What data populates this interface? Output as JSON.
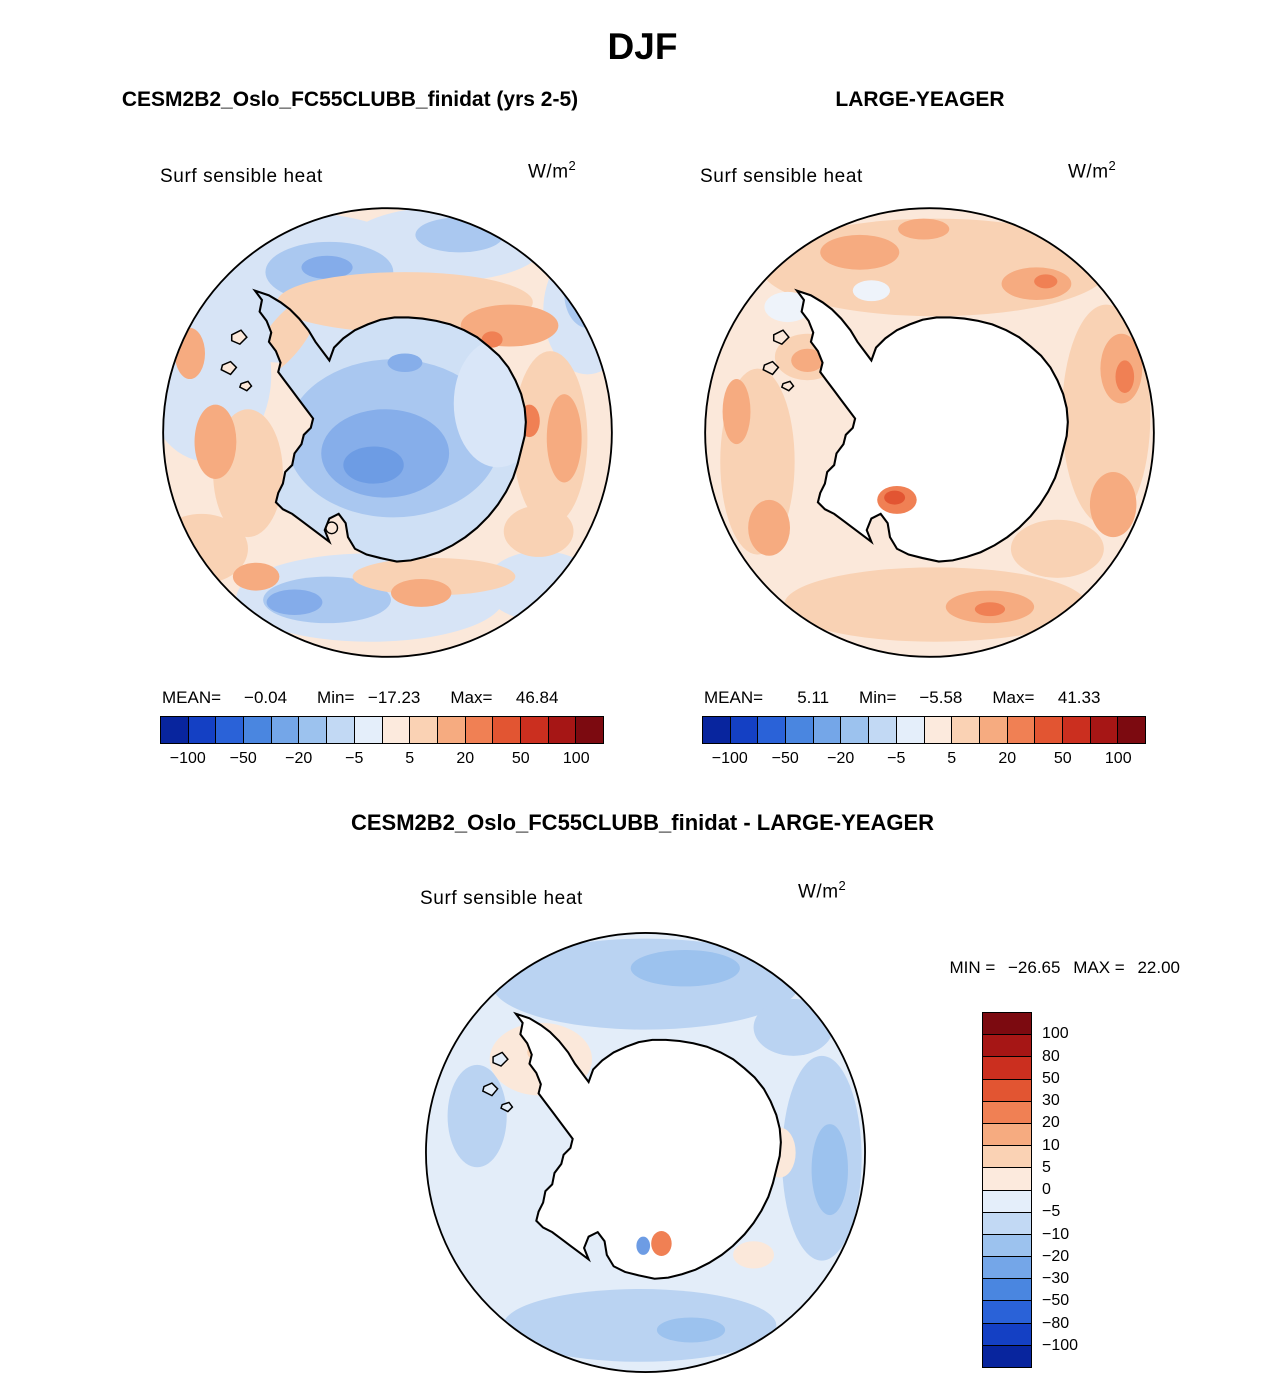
{
  "page": {
    "title": "DJF"
  },
  "panels": {
    "left": {
      "title": "CESM2B2_Oslo_FC55CLUBB_finidat (yrs 2-5)",
      "field_label": "Surf sensible heat",
      "units_base": "W/m",
      "units_exp": "2",
      "stats": {
        "mean_label": "MEAN=",
        "mean": "−0.04",
        "min_label": "Min=",
        "min": "−17.23",
        "max_label": "Max=",
        "max": "46.84"
      }
    },
    "right": {
      "title": "LARGE-YEAGER",
      "field_label": "Surf sensible heat",
      "units_base": "W/m",
      "units_exp": "2",
      "stats": {
        "mean_label": "MEAN=",
        "mean": "5.11",
        "min_label": "Min=",
        "min": "−5.58",
        "max_label": "Max=",
        "max": "41.33"
      }
    },
    "diff": {
      "title": "CESM2B2_Oslo_FC55CLUBB_finidat - LARGE-YEAGER",
      "field_label": "Surf sensible heat",
      "units_base": "W/m",
      "units_exp": "2",
      "min_label": "MIN =",
      "min": "−26.65",
      "max_label": "MAX =",
      "max": "22.00"
    }
  },
  "colorbar": {
    "colors": [
      "#08259e",
      "#1440c4",
      "#2a62d8",
      "#4a86e0",
      "#74a6e8",
      "#9cc2ee",
      "#c2d9f4",
      "#e4eefa",
      "#fceadd",
      "#fad2b4",
      "#f6ab80",
      "#f08054",
      "#e25532",
      "#cb2f1f",
      "#a61615",
      "#7c0a10"
    ],
    "tick_labels": [
      "−100",
      "−50",
      "−20",
      "−5",
      "5",
      "20",
      "50",
      "100"
    ],
    "vertical_labels": [
      "100",
      "80",
      "50",
      "30",
      "20",
      "10",
      "5",
      "0",
      "−5",
      "−10",
      "−20",
      "−30",
      "−50",
      "−80",
      "−100"
    ]
  },
  "chart_data": [
    {
      "type": "heatmap",
      "title": "CESM2B2_Oslo_FC55CLUBB_finidat (yrs 2-5)",
      "variable": "Surf sensible heat",
      "units": "W/m^2",
      "season": "DJF",
      "projection": "south polar stereographic",
      "stats": {
        "mean": -0.04,
        "min": -17.23,
        "max": 46.84
      },
      "contour_levels": [
        -100,
        -80,
        -50,
        -30,
        -20,
        -10,
        -5,
        0,
        5,
        10,
        20,
        30,
        50,
        80,
        100
      ],
      "labeled_levels": [
        -100,
        -50,
        -20,
        -5,
        5,
        20,
        50,
        100
      ],
      "legend_position": "bottom"
    },
    {
      "type": "heatmap",
      "title": "LARGE-YEAGER",
      "variable": "Surf sensible heat",
      "units": "W/m^2",
      "season": "DJF",
      "projection": "south polar stereographic",
      "stats": {
        "mean": 5.11,
        "min": -5.58,
        "max": 41.33
      },
      "contour_levels": [
        -100,
        -80,
        -50,
        -30,
        -20,
        -10,
        -5,
        0,
        5,
        10,
        20,
        30,
        50,
        80,
        100
      ],
      "labeled_levels": [
        -100,
        -50,
        -20,
        -5,
        5,
        20,
        50,
        100
      ],
      "legend_position": "bottom"
    },
    {
      "type": "heatmap",
      "title": "CESM2B2_Oslo_FC55CLUBB_finidat - LARGE-YEAGER",
      "variable": "Surf sensible heat",
      "units": "W/m^2",
      "season": "DJF",
      "projection": "south polar stereographic",
      "stats": {
        "min": -26.65,
        "max": 22.0
      },
      "contour_levels": [
        -100,
        -80,
        -50,
        -30,
        -20,
        -10,
        -5,
        0,
        5,
        10,
        20,
        30,
        50,
        80,
        100
      ],
      "labeled_levels": [
        100,
        80,
        50,
        30,
        20,
        10,
        5,
        0,
        -5,
        -10,
        -20,
        -30,
        -50,
        -80,
        -100
      ],
      "legend_position": "right"
    }
  ]
}
